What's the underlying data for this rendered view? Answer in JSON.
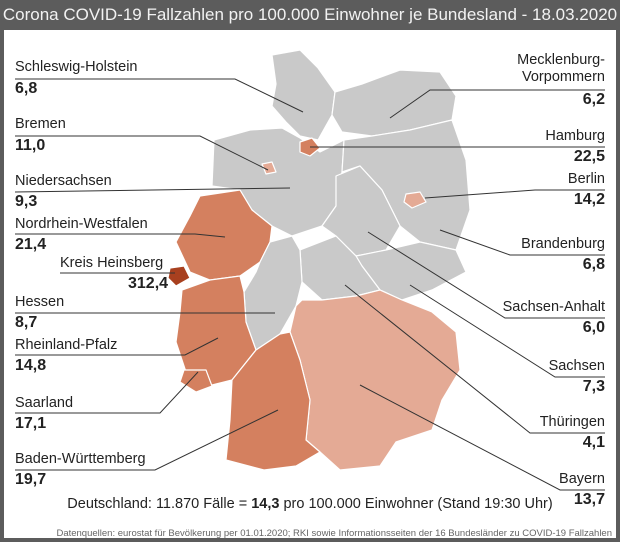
{
  "title": "Corona COVID-19 Fallzahlen pro 100.000 Einwohner je Bundesland - 18.03.2020",
  "colors": {
    "no_data_grey": "#c9c9c9",
    "high": "#d4805f",
    "medium": "#e4aa95",
    "hotspot": "#a8401f",
    "title_bar": "#5c5c5c"
  },
  "regions": [
    {
      "name": "Schleswig-Holstein",
      "value": "6,8"
    },
    {
      "name": "Bremen",
      "value": "11,0"
    },
    {
      "name": "Niedersachsen",
      "value": "9,3"
    },
    {
      "name": "Nordrhein-Westfalen",
      "value": "21,4"
    },
    {
      "name": "Kreis Heinsberg",
      "value": "312,4"
    },
    {
      "name": "Hessen",
      "value": "8,7"
    },
    {
      "name": "Rheinland-Pfalz",
      "value": "14,8"
    },
    {
      "name": "Saarland",
      "value": "17,1"
    },
    {
      "name": "Baden-Württemberg",
      "value": "19,7"
    },
    {
      "name": "Mecklenburg-\nVorpommern",
      "value": "6,2"
    },
    {
      "name": "Hamburg",
      "value": "22,5"
    },
    {
      "name": "Berlin",
      "value": "14,2"
    },
    {
      "name": "Brandenburg",
      "value": "6,8"
    },
    {
      "name": "Sachsen-Anhalt",
      "value": "6,0"
    },
    {
      "name": "Sachsen",
      "value": "7,3"
    },
    {
      "name": "Thüringen",
      "value": "4,1"
    },
    {
      "name": "Bayern",
      "value": "13,7"
    }
  ],
  "summary": {
    "prefix": "Deutschland: 11.870 Fälle = ",
    "rate": "14,3",
    "suffix": " pro 100.000 Einwohner (Stand 19:30 Uhr)"
  },
  "source": "Datenquellen: eurostat für Bevölkerung per 01.01.2020; RKI sowie Informationsseiten der 16 Bundesländer zu COVID-19 Fallzahlen"
}
